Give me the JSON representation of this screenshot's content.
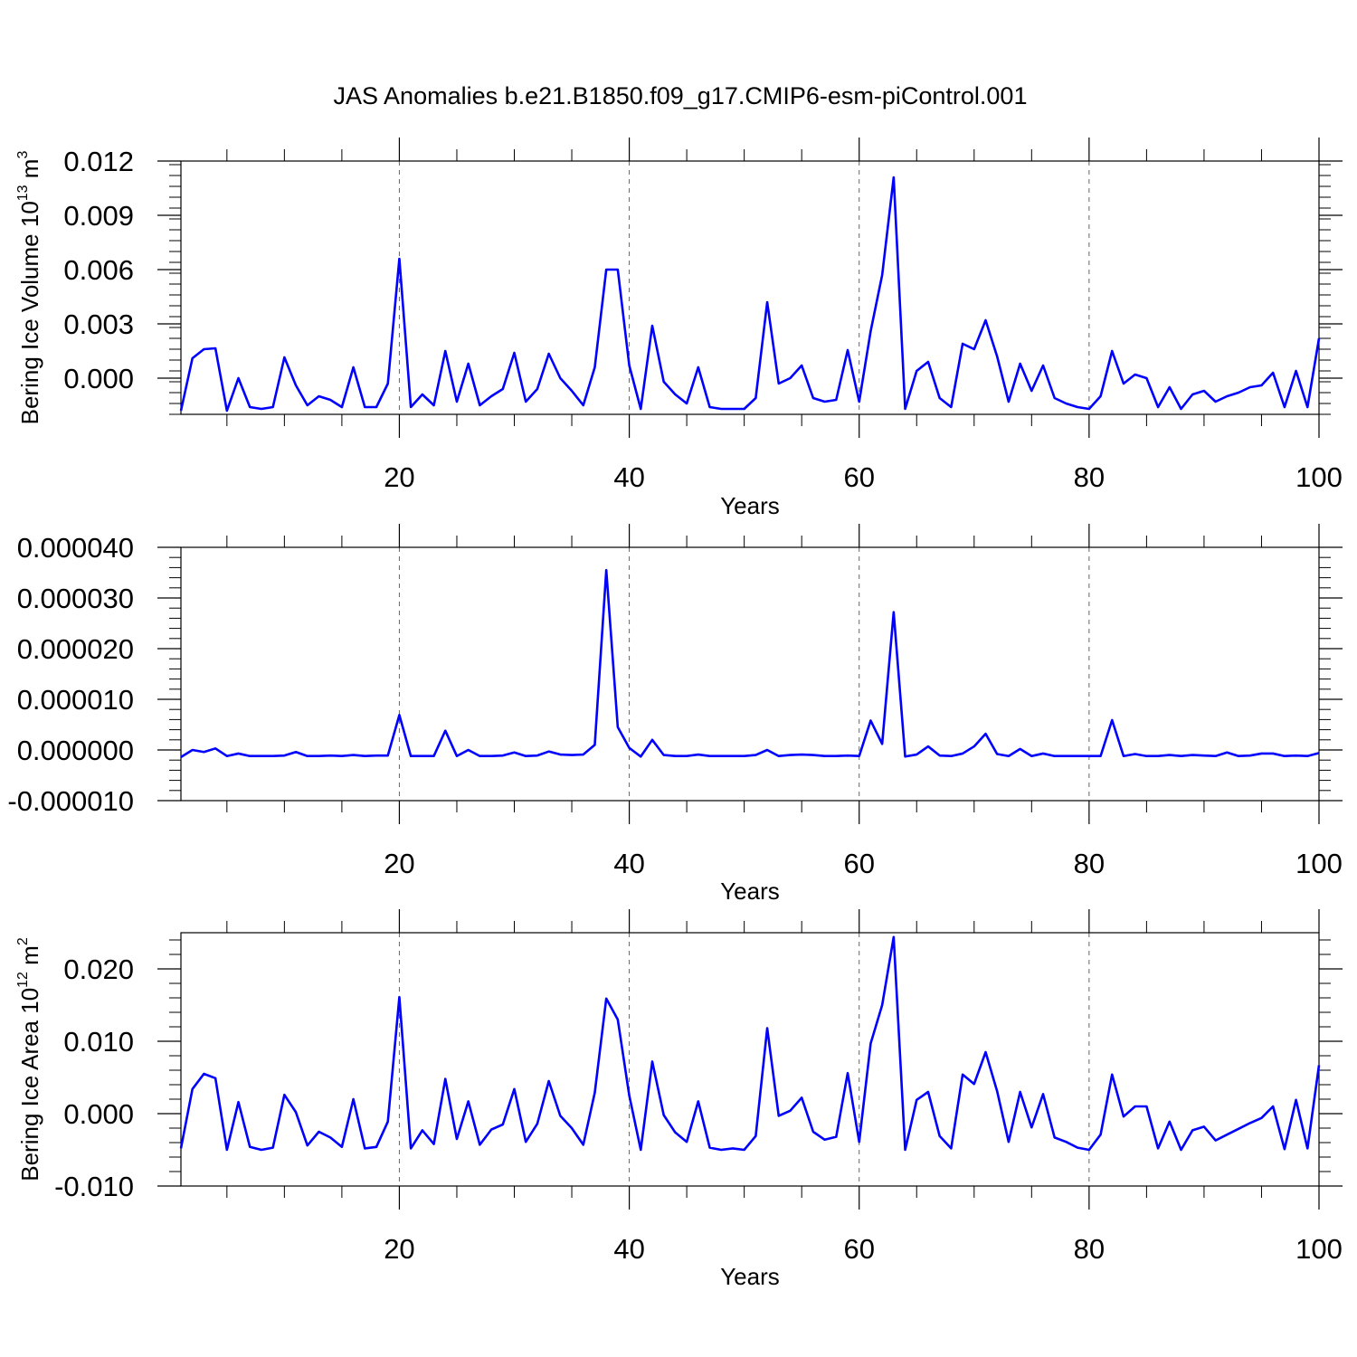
{
  "title": "JAS Anomalies b.e21.B1850.f09_g17.CMIP6-esm-piControl.001",
  "line_color": "#0000ff",
  "chart_data": [
    {
      "type": "line",
      "title": "",
      "xlabel": "Years",
      "ylabel_main": "Bering Ice Volume 10",
      "ylabel_exp": "13",
      "ylabel_unit": " m",
      "ylabel_unit_exp": "3",
      "xlim": [
        1,
        100
      ],
      "ylim": [
        -0.002,
        0.012
      ],
      "grid": "vertical dashed at 20, 40, 60, 80",
      "x_ticks": [
        "20",
        "40",
        "60",
        "80",
        "100"
      ],
      "y_ticks": [
        "0.012",
        "0.009",
        "0.006",
        "0.003",
        "0.000"
      ],
      "series": [
        {
          "x": [
            1,
            2,
            3,
            4,
            5,
            6,
            7,
            8,
            9,
            10,
            11,
            12,
            13,
            14,
            15,
            16,
            17,
            18,
            19,
            20,
            21,
            22,
            23,
            24,
            25,
            26,
            27,
            28,
            29,
            30,
            31,
            32,
            33,
            34,
            35,
            36,
            37,
            38,
            39,
            40,
            41,
            42,
            43,
            44,
            45,
            46,
            47,
            48,
            49,
            50,
            51,
            52,
            53,
            54,
            55,
            56,
            57,
            58,
            59,
            60,
            61,
            62,
            63,
            64,
            65,
            66,
            67,
            68,
            69,
            70,
            71,
            72,
            73,
            74,
            75,
            76,
            77,
            78,
            79,
            80,
            81,
            82,
            83,
            84,
            85,
            86,
            87,
            88,
            89,
            90,
            91,
            92,
            93,
            94,
            95,
            96,
            97,
            98,
            99,
            100
          ],
          "values": [
            -0.0018,
            0.0011,
            0.0016,
            0.00165,
            -0.0018,
            0.0,
            -0.0016,
            -0.0017,
            -0.0016,
            0.00115,
            -0.0004,
            -0.0015,
            -0.001,
            -0.0012,
            -0.0016,
            0.0006,
            -0.0016,
            -0.0016,
            -0.0003,
            0.0066,
            -0.0016,
            -0.0009,
            -0.0015,
            0.0015,
            -0.0013,
            0.0008,
            -0.0015,
            -0.001,
            -0.0006,
            0.0014,
            -0.0013,
            -0.0006,
            0.00135,
            0.0,
            -0.0007,
            -0.0015,
            0.0006,
            0.006,
            0.006,
            0.0007,
            -0.0017,
            0.0029,
            -0.0002,
            -0.0009,
            -0.0014,
            0.0006,
            -0.0016,
            -0.0017,
            -0.0017,
            -0.0017,
            -0.0011,
            0.0042,
            -0.0003,
            0.0,
            0.0007,
            -0.0011,
            -0.0013,
            -0.0012,
            0.00155,
            -0.0013,
            0.0026,
            0.0057,
            0.0111,
            -0.0017,
            0.0004,
            0.0009,
            -0.0011,
            -0.0016,
            0.0019,
            0.0016,
            0.0032,
            0.0012,
            -0.0013,
            0.0008,
            -0.0007,
            0.0007,
            -0.0011,
            -0.0014,
            -0.0016,
            -0.0017,
            -0.001,
            0.0015,
            -0.0003,
            0.0002,
            0.0,
            -0.0016,
            -0.0005,
            -0.0017,
            -0.0009,
            -0.0007,
            -0.0013,
            -0.001,
            -0.0008,
            -0.0005,
            -0.0004,
            0.0003,
            -0.0016,
            0.0004,
            -0.0016,
            0.0022
          ]
        }
      ]
    },
    {
      "type": "line",
      "title": "",
      "xlabel": "Years",
      "ylabel_main": "",
      "xlim": [
        1,
        100
      ],
      "ylim": [
        -1e-05,
        4e-05
      ],
      "grid": "vertical dashed at 20, 40, 60, 80",
      "x_ticks": [
        "20",
        "40",
        "60",
        "80",
        "100"
      ],
      "y_ticks": [
        "0.000040",
        "0.000030",
        "0.000020",
        "0.000010",
        "0.000000",
        "-0.000010"
      ],
      "series": [
        {
          "x": [
            1,
            2,
            3,
            4,
            5,
            6,
            7,
            8,
            9,
            10,
            11,
            12,
            13,
            14,
            15,
            16,
            17,
            18,
            19,
            20,
            21,
            22,
            23,
            24,
            25,
            26,
            27,
            28,
            29,
            30,
            31,
            32,
            33,
            34,
            35,
            36,
            37,
            38,
            39,
            40,
            41,
            42,
            43,
            44,
            45,
            46,
            47,
            48,
            49,
            50,
            51,
            52,
            53,
            54,
            55,
            56,
            57,
            58,
            59,
            60,
            61,
            62,
            63,
            64,
            65,
            66,
            67,
            68,
            69,
            70,
            71,
            72,
            73,
            74,
            75,
            76,
            77,
            78,
            79,
            80,
            81,
            82,
            83,
            84,
            85,
            86,
            87,
            88,
            89,
            90,
            91,
            92,
            93,
            94,
            95,
            96,
            97,
            98,
            99,
            100
          ],
          "values": [
            -1.4e-06,
            0.0,
            -4e-07,
            3e-07,
            -1.2e-06,
            -7e-07,
            -1.2e-06,
            -1.2e-06,
            -1.2e-06,
            -1.1e-06,
            -4e-07,
            -1.2e-06,
            -1.2e-06,
            -1.1e-06,
            -1.2e-06,
            -1e-06,
            -1.2e-06,
            -1.1e-06,
            -1.1e-06,
            6.9e-06,
            -1.2e-06,
            -1.2e-06,
            -1.2e-06,
            3.8e-06,
            -1.2e-06,
            0.0,
            -1.2e-06,
            -1.2e-06,
            -1.1e-06,
            -5e-07,
            -1.2e-06,
            -1.1e-06,
            -3e-07,
            -9e-07,
            -1e-06,
            -9e-07,
            1e-06,
            3.55e-05,
            4.5e-06,
            4e-07,
            -1.3e-06,
            2e-06,
            -1e-06,
            -1.2e-06,
            -1.2e-06,
            -9e-07,
            -1.2e-06,
            -1.2e-06,
            -1.2e-06,
            -1.2e-06,
            -1e-06,
            0.0,
            -1.2e-06,
            -1e-06,
            -9e-07,
            -1e-06,
            -1.2e-06,
            -1.2e-06,
            -1.1e-06,
            -1.2e-06,
            5.8e-06,
            1.2e-06,
            2.72e-05,
            -1.3e-06,
            -9e-07,
            7e-07,
            -1.1e-06,
            -1.2e-06,
            -7e-07,
            7e-07,
            3.2e-06,
            -8e-07,
            -1.2e-06,
            2e-07,
            -1.2e-06,
            -7e-07,
            -1.2e-06,
            -1.2e-06,
            -1.2e-06,
            -1.2e-06,
            -1.2e-06,
            5.9e-06,
            -1.2e-06,
            -8e-07,
            -1.2e-06,
            -1.2e-06,
            -1e-06,
            -1.2e-06,
            -1e-06,
            -1.1e-06,
            -1.2e-06,
            -5e-07,
            -1.2e-06,
            -1.1e-06,
            -7e-07,
            -7e-07,
            -1.2e-06,
            -1.1e-06,
            -1.2e-06,
            -6e-07
          ]
        }
      ]
    },
    {
      "type": "line",
      "title": "",
      "xlabel": "Years",
      "ylabel_main": "Bering Ice Area 10",
      "ylabel_exp": "12",
      "ylabel_unit": " m",
      "ylabel_unit_exp": "2",
      "xlim": [
        1,
        100
      ],
      "ylim": [
        -0.01,
        0.025
      ],
      "grid": "vertical dashed at 20, 40, 60, 80",
      "x_ticks": [
        "20",
        "40",
        "60",
        "80",
        "100"
      ],
      "y_ticks": [
        "0.020",
        "0.010",
        "0.000",
        "-0.010"
      ],
      "series": [
        {
          "x": [
            1,
            2,
            3,
            4,
            5,
            6,
            7,
            8,
            9,
            10,
            11,
            12,
            13,
            14,
            15,
            16,
            17,
            18,
            19,
            20,
            21,
            22,
            23,
            24,
            25,
            26,
            27,
            28,
            29,
            30,
            31,
            32,
            33,
            34,
            35,
            36,
            37,
            38,
            39,
            40,
            41,
            42,
            43,
            44,
            45,
            46,
            47,
            48,
            49,
            50,
            51,
            52,
            53,
            54,
            55,
            56,
            57,
            58,
            59,
            60,
            61,
            62,
            63,
            64,
            65,
            66,
            67,
            68,
            69,
            70,
            71,
            72,
            73,
            74,
            75,
            76,
            77,
            78,
            79,
            80,
            81,
            82,
            83,
            84,
            85,
            86,
            87,
            88,
            89,
            90,
            91,
            92,
            93,
            94,
            95,
            96,
            97,
            98,
            99,
            100
          ],
          "values": [
            -0.0048,
            0.0034,
            0.0055,
            0.0049,
            -0.005,
            0.0016,
            -0.0046,
            -0.005,
            -0.0047,
            0.0026,
            0.0002,
            -0.0044,
            -0.0025,
            -0.0033,
            -0.0046,
            0.002,
            -0.0048,
            -0.0046,
            -0.0011,
            0.0161,
            -0.0048,
            -0.0023,
            -0.0042,
            0.0048,
            -0.0035,
            0.0017,
            -0.0043,
            -0.0022,
            -0.0015,
            0.0034,
            -0.0039,
            -0.0014,
            0.0045,
            -0.0003,
            -0.002,
            -0.0043,
            0.0029,
            0.0159,
            0.013,
            0.0025,
            -0.005,
            0.0072,
            -0.0002,
            -0.0026,
            -0.0039,
            0.0017,
            -0.0047,
            -0.005,
            -0.0048,
            -0.005,
            -0.0031,
            0.0118,
            -0.0003,
            0.0004,
            0.0022,
            -0.0025,
            -0.0036,
            -0.0032,
            0.0056,
            -0.0039,
            0.0097,
            0.015,
            0.0244,
            -0.005,
            0.0019,
            0.003,
            -0.0031,
            -0.0048,
            0.0054,
            0.0041,
            0.0085,
            0.0031,
            -0.0039,
            0.003,
            -0.0019,
            0.0027,
            -0.0033,
            -0.0039,
            -0.0047,
            -0.005,
            -0.0029,
            0.0054,
            -0.0004,
            0.001,
            0.001,
            -0.0048,
            -0.0011,
            -0.005,
            -0.0023,
            -0.0018,
            -0.0037,
            -0.0029,
            -0.0021,
            -0.0013,
            -0.0006,
            0.001,
            -0.0049,
            0.0019,
            -0.0048,
            0.0067
          ]
        }
      ]
    }
  ]
}
